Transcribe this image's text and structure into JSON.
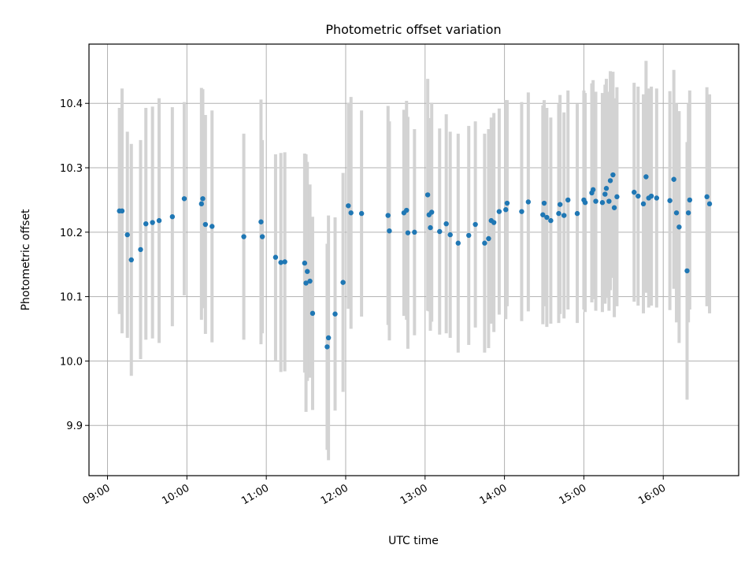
{
  "chart_data": {
    "type": "scatter",
    "title": "Photometric offset variation",
    "xlabel": "UTC time",
    "ylabel": "Photometric offset",
    "grid": true,
    "xlim": [
      "08:46",
      "16:57"
    ],
    "ylim": [
      9.822,
      10.492
    ],
    "x_ticks": [
      "09:00",
      "10:00",
      "11:00",
      "12:00",
      "13:00",
      "14:00",
      "15:00",
      "16:00"
    ],
    "y_ticks": [
      "9.9",
      "10.0",
      "10.1",
      "10.2",
      "10.3",
      "10.4"
    ],
    "colors": {
      "point": "#1f77b4",
      "errorbar": "#d3d3d3",
      "grid": "#b0b0b0"
    },
    "series": [
      {
        "x": [
          "09:09",
          "09:11",
          "09:15",
          "09:18",
          "09:25",
          "09:29",
          "09:34",
          "09:39",
          "09:49",
          "09:58",
          "10:11",
          "10:12",
          "10:14",
          "10:19",
          "10:43",
          "10:56",
          "10:57",
          "11:07",
          "11:11",
          "11:14",
          "11:29",
          "11:30",
          "11:31",
          "11:33",
          "11:35",
          "11:46",
          "11:47",
          "11:52",
          "11:58",
          "12:02",
          "12:04",
          "12:12",
          "12:32",
          "12:33",
          "12:44",
          "12:46",
          "12:47",
          "12:52",
          "13:02",
          "13:03",
          "13:04",
          "13:05",
          "13:11",
          "13:16",
          "13:19",
          "13:25",
          "13:33",
          "13:38",
          "13:45",
          "13:48",
          "13:50",
          "13:52",
          "13:56",
          "14:01",
          "14:02",
          "14:13",
          "14:18",
          "14:29",
          "14:30",
          "14:32",
          "14:35",
          "14:41",
          "14:42",
          "14:45",
          "14:48",
          "14:55",
          "15:00",
          "15:01",
          "15:06",
          "15:07",
          "15:09",
          "15:14",
          "15:16",
          "15:17",
          "15:19",
          "15:20",
          "15:22",
          "15:23",
          "15:25",
          "15:38",
          "15:41",
          "15:45",
          "15:47",
          "15:49",
          "15:51",
          "15:55",
          "16:05",
          "16:08",
          "16:10",
          "16:12",
          "16:18",
          "16:19",
          "16:20",
          "16:33",
          "16:35"
        ],
        "y": [
          10.233,
          10.233,
          10.196,
          10.157,
          10.173,
          10.213,
          10.215,
          10.218,
          10.224,
          10.252,
          10.244,
          10.252,
          10.212,
          10.209,
          10.193,
          10.216,
          10.193,
          10.161,
          10.153,
          10.154,
          10.152,
          10.121,
          10.139,
          10.124,
          10.074,
          10.022,
          10.036,
          10.073,
          10.122,
          10.241,
          10.23,
          10.229,
          10.226,
          10.202,
          10.23,
          10.234,
          10.199,
          10.2,
          10.258,
          10.227,
          10.207,
          10.231,
          10.201,
          10.213,
          10.196,
          10.183,
          10.195,
          10.212,
          10.183,
          10.19,
          10.218,
          10.215,
          10.232,
          10.235,
          10.245,
          10.232,
          10.247,
          10.227,
          10.245,
          10.223,
          10.218,
          10.229,
          10.243,
          10.226,
          10.25,
          10.229,
          10.25,
          10.246,
          10.261,
          10.266,
          10.248,
          10.246,
          10.259,
          10.268,
          10.248,
          10.28,
          10.289,
          10.238,
          10.255,
          10.262,
          10.256,
          10.244,
          10.286,
          10.253,
          10.256,
          10.253,
          10.249,
          10.282,
          10.23,
          10.208,
          10.14,
          10.23,
          10.25,
          10.255,
          10.244
        ],
        "yerr": [
          0.16,
          0.19,
          0.16,
          0.18,
          0.17,
          0.18,
          0.18,
          0.19,
          0.17,
          0.15,
          0.18,
          0.17,
          0.17,
          0.18,
          0.16,
          0.19,
          0.15,
          0.16,
          0.17,
          0.17,
          0.17,
          0.2,
          0.17,
          0.15,
          0.15,
          0.16,
          0.19,
          0.15,
          0.17,
          0.16,
          0.18,
          0.16,
          0.17,
          0.17,
          0.16,
          0.17,
          0.18,
          0.16,
          0.18,
          0.15,
          0.16,
          0.17,
          0.16,
          0.17,
          0.16,
          0.17,
          0.17,
          0.16,
          0.17,
          0.17,
          0.16,
          0.17,
          0.16,
          0.17,
          0.16,
          0.17,
          0.17,
          0.17,
          0.16,
          0.17,
          0.16,
          0.17,
          0.17,
          0.16,
          0.17,
          0.17,
          0.17,
          0.17,
          0.17,
          0.17,
          0.17,
          0.17,
          0.17,
          0.17,
          0.17,
          0.17,
          0.16,
          0.17,
          0.17,
          0.17,
          0.17,
          0.17,
          0.18,
          0.17,
          0.17,
          0.17,
          0.17,
          0.17,
          0.17,
          0.18,
          0.2,
          0.17,
          0.17,
          0.17,
          0.17
        ]
      }
    ]
  }
}
